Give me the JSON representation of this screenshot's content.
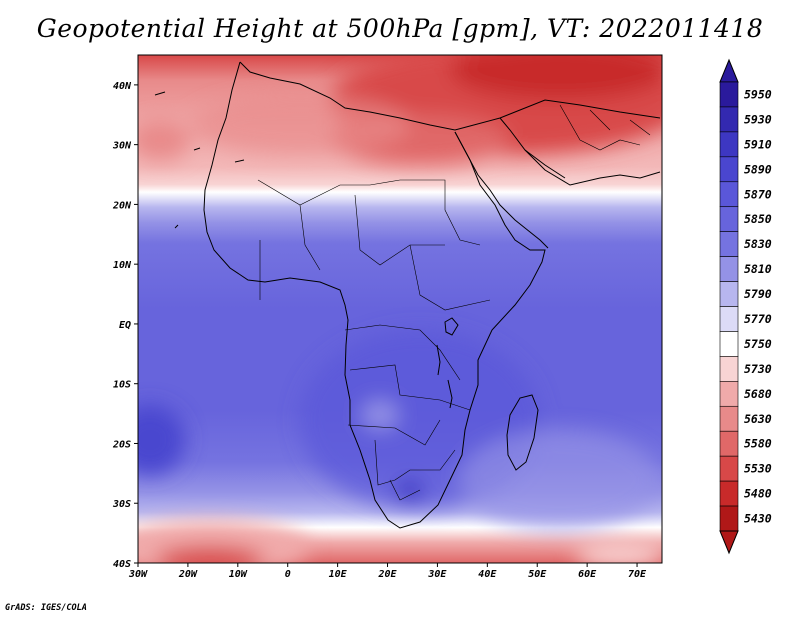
{
  "title": "Geopotential Height at 500hPa [gpm], VT: 2022011418",
  "credit": "GrADS: IGES/COLA",
  "map": {
    "lon_range": [
      -30,
      75
    ],
    "lat_range": [
      -40,
      45
    ],
    "x_ticks": [
      {
        "lon": -30,
        "label": "30W"
      },
      {
        "lon": -20,
        "label": "20W"
      },
      {
        "lon": -10,
        "label": "10W"
      },
      {
        "lon": 0,
        "label": "0"
      },
      {
        "lon": 10,
        "label": "10E"
      },
      {
        "lon": 20,
        "label": "20E"
      },
      {
        "lon": 30,
        "label": "30E"
      },
      {
        "lon": 40,
        "label": "40E"
      },
      {
        "lon": 50,
        "label": "50E"
      },
      {
        "lon": 60,
        "label": "60E"
      },
      {
        "lon": 70,
        "label": "70E"
      }
    ],
    "y_ticks": [
      {
        "lat": 40,
        "label": "40N"
      },
      {
        "lat": 30,
        "label": "30N"
      },
      {
        "lat": 20,
        "label": "20N"
      },
      {
        "lat": 10,
        "label": "10N"
      },
      {
        "lat": 0,
        "label": "EQ"
      },
      {
        "lat": -10,
        "label": "10S"
      },
      {
        "lat": -20,
        "label": "20S"
      },
      {
        "lat": -30,
        "label": "30S"
      },
      {
        "lat": -40,
        "label": "40S"
      }
    ],
    "coastline_color": "#000000"
  },
  "colorbar": {
    "levels": [
      {
        "label": "5950",
        "color": "#2a1a9c"
      },
      {
        "label": "5930",
        "color": "#3329b0"
      },
      {
        "label": "5910",
        "color": "#3d37c2"
      },
      {
        "label": "5890",
        "color": "#4a46cf"
      },
      {
        "label": "5870",
        "color": "#5a57d9"
      },
      {
        "label": "5850",
        "color": "#6764dc"
      },
      {
        "label": "5830",
        "color": "#7573e0"
      },
      {
        "label": "5810",
        "color": "#9492e6"
      },
      {
        "label": "5790",
        "color": "#b7b6ef"
      },
      {
        "label": "5770",
        "color": "#dcdbf7"
      },
      {
        "label": "5750",
        "color": "#ffffff"
      },
      {
        "label": "5730",
        "color": "#f8d4d4"
      },
      {
        "label": "5680",
        "color": "#f0aaaa"
      },
      {
        "label": "5630",
        "color": "#e88a8a"
      },
      {
        "label": "5580",
        "color": "#e06868"
      },
      {
        "label": "5530",
        "color": "#d84848"
      },
      {
        "label": "5480",
        "color": "#c82a2a"
      },
      {
        "label": "5430",
        "color": "#b01818"
      }
    ]
  }
}
